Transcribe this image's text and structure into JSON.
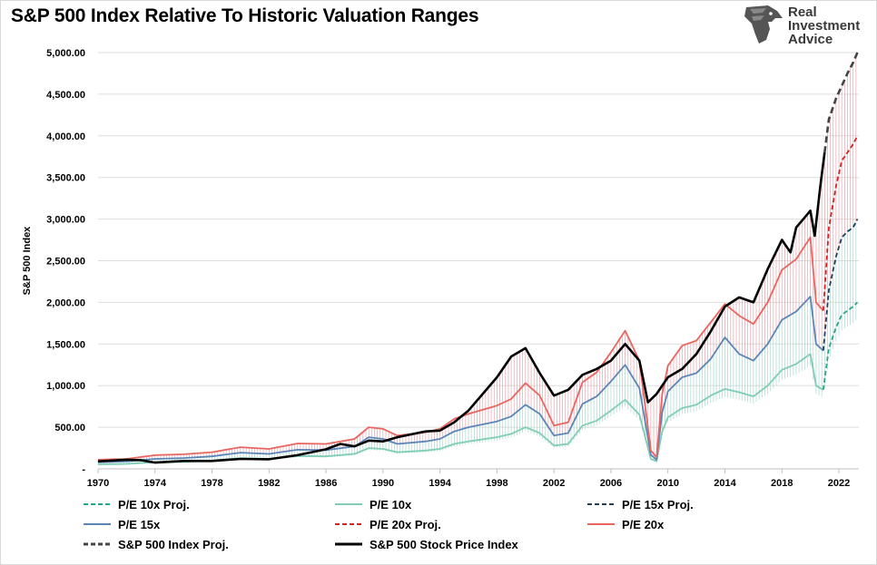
{
  "title": "S&P 500 Index Relative To Historic Valuation Ranges",
  "logo": {
    "line1": "Real",
    "line2": "Investment",
    "line3": "Advice",
    "icon": "eagle-head-icon"
  },
  "colors": {
    "pe10": "#7fcdb4",
    "pe10_proj": "#2aa58a",
    "pe15": "#5b85b8",
    "pe15_proj": "#1f3d5c",
    "pe20": "#e96660",
    "pe20_proj": "#d62020",
    "sp": "#000000",
    "sp_proj": "#444444",
    "band_lower": "#a8d8cb",
    "band_mid": "#aac0db",
    "band_upper": "#e3a6ad",
    "grid": "#dddddd"
  },
  "chart_data": {
    "type": "line",
    "ylabel": "S&P 500 Index",
    "xlabel": "",
    "xlim": [
      1970,
      2023.4
    ],
    "ylim": [
      0,
      5000
    ],
    "ytick_labels": [
      "-",
      "500.00",
      "1,000.00",
      "1,500.00",
      "2,000.00",
      "2,500.00",
      "3,000.00",
      "3,500.00",
      "4,000.00",
      "4,500.00",
      "5,000.00"
    ],
    "ytick_values": [
      0,
      500,
      1000,
      1500,
      2000,
      2500,
      3000,
      3500,
      4000,
      4500,
      5000
    ],
    "xtick_labels": [
      "1970",
      "1974",
      "1978",
      "1982",
      "1986",
      "1990",
      "1994",
      "1998",
      "2002",
      "2006",
      "2010",
      "2014",
      "2018",
      "2022"
    ],
    "xtick_values": [
      1970,
      1974,
      1978,
      1982,
      1986,
      1990,
      1994,
      1998,
      2002,
      2006,
      2010,
      2014,
      2018,
      2022
    ],
    "grid": true,
    "legend_position": "bottom",
    "series": [
      {
        "name": "P/E 10x",
        "key": "pe10",
        "style": "solid",
        "points": [
          [
            1970,
            55
          ],
          [
            1972,
            60
          ],
          [
            1974,
            80
          ],
          [
            1976,
            85
          ],
          [
            1978,
            100
          ],
          [
            1980,
            130
          ],
          [
            1982,
            120
          ],
          [
            1984,
            155
          ],
          [
            1986,
            150
          ],
          [
            1988,
            180
          ],
          [
            1989,
            250
          ],
          [
            1990,
            240
          ],
          [
            1991,
            200
          ],
          [
            1993,
            220
          ],
          [
            1994,
            240
          ],
          [
            1995,
            300
          ],
          [
            1996,
            330
          ],
          [
            1998,
            380
          ],
          [
            1999,
            420
          ],
          [
            2000,
            500
          ],
          [
            2001,
            430
          ],
          [
            2002,
            280
          ],
          [
            2003,
            300
          ],
          [
            2004,
            520
          ],
          [
            2005,
            580
          ],
          [
            2006,
            700
          ],
          [
            2007,
            830
          ],
          [
            2008,
            650
          ],
          [
            2008.8,
            120
          ],
          [
            2009.2,
            90
          ],
          [
            2009.6,
            450
          ],
          [
            2010,
            620
          ],
          [
            2011,
            730
          ],
          [
            2012,
            770
          ],
          [
            2013,
            880
          ],
          [
            2014,
            960
          ],
          [
            2015,
            920
          ],
          [
            2016,
            870
          ],
          [
            2017,
            1000
          ],
          [
            2018,
            1190
          ],
          [
            2019,
            1260
          ],
          [
            2020,
            1380
          ],
          [
            2020.4,
            1000
          ],
          [
            2020.9,
            950
          ]
        ]
      },
      {
        "name": "P/E 10x Proj.",
        "key": "pe10_proj",
        "style": "dashed",
        "points": [
          [
            2020.9,
            950
          ],
          [
            2021.3,
            1450
          ],
          [
            2021.8,
            1700
          ],
          [
            2022.2,
            1850
          ],
          [
            2022.6,
            1900
          ],
          [
            2023,
            1950
          ],
          [
            2023.3,
            2000
          ]
        ]
      },
      {
        "name": "P/E 15x",
        "key": "pe15",
        "style": "solid",
        "points": [
          [
            1970,
            80
          ],
          [
            1972,
            90
          ],
          [
            1974,
            120
          ],
          [
            1976,
            130
          ],
          [
            1978,
            150
          ],
          [
            1980,
            195
          ],
          [
            1982,
            180
          ],
          [
            1984,
            230
          ],
          [
            1986,
            225
          ],
          [
            1988,
            270
          ],
          [
            1989,
            380
          ],
          [
            1990,
            360
          ],
          [
            1991,
            300
          ],
          [
            1993,
            330
          ],
          [
            1994,
            360
          ],
          [
            1995,
            450
          ],
          [
            1996,
            500
          ],
          [
            1998,
            570
          ],
          [
            1999,
            630
          ],
          [
            2000,
            770
          ],
          [
            2001,
            660
          ],
          [
            2002,
            400
          ],
          [
            2003,
            430
          ],
          [
            2004,
            780
          ],
          [
            2005,
            870
          ],
          [
            2006,
            1050
          ],
          [
            2007,
            1250
          ],
          [
            2008,
            970
          ],
          [
            2008.8,
            170
          ],
          [
            2009.2,
            110
          ],
          [
            2009.6,
            680
          ],
          [
            2010,
            930
          ],
          [
            2011,
            1100
          ],
          [
            2012,
            1150
          ],
          [
            2013,
            1320
          ],
          [
            2014,
            1580
          ],
          [
            2015,
            1380
          ],
          [
            2016,
            1300
          ],
          [
            2017,
            1500
          ],
          [
            2018,
            1790
          ],
          [
            2019,
            1890
          ],
          [
            2020,
            2070
          ],
          [
            2020.4,
            1500
          ],
          [
            2020.9,
            1420
          ]
        ]
      },
      {
        "name": "P/E 15x Proj.",
        "key": "pe15_proj",
        "style": "dashed",
        "points": [
          [
            2020.9,
            1420
          ],
          [
            2021.3,
            2150
          ],
          [
            2021.8,
            2550
          ],
          [
            2022.2,
            2780
          ],
          [
            2022.6,
            2850
          ],
          [
            2023,
            2900
          ],
          [
            2023.3,
            3000
          ]
        ]
      },
      {
        "name": "P/E 20x",
        "key": "pe20",
        "style": "solid",
        "points": [
          [
            1970,
            110
          ],
          [
            1972,
            120
          ],
          [
            1974,
            165
          ],
          [
            1976,
            175
          ],
          [
            1978,
            200
          ],
          [
            1980,
            260
          ],
          [
            1982,
            240
          ],
          [
            1984,
            305
          ],
          [
            1986,
            300
          ],
          [
            1988,
            360
          ],
          [
            1989,
            500
          ],
          [
            1990,
            480
          ],
          [
            1991,
            400
          ],
          [
            1993,
            440
          ],
          [
            1994,
            480
          ],
          [
            1995,
            600
          ],
          [
            1996,
            660
          ],
          [
            1998,
            760
          ],
          [
            1999,
            840
          ],
          [
            2000,
            1030
          ],
          [
            2001,
            880
          ],
          [
            2002,
            520
          ],
          [
            2003,
            560
          ],
          [
            2004,
            1040
          ],
          [
            2005,
            1160
          ],
          [
            2006,
            1400
          ],
          [
            2007,
            1660
          ],
          [
            2008,
            1300
          ],
          [
            2008.8,
            220
          ],
          [
            2009.2,
            140
          ],
          [
            2009.6,
            900
          ],
          [
            2010,
            1240
          ],
          [
            2011,
            1480
          ],
          [
            2012,
            1540
          ],
          [
            2013,
            1760
          ],
          [
            2014,
            1980
          ],
          [
            2015,
            1840
          ],
          [
            2016,
            1740
          ],
          [
            2017,
            2000
          ],
          [
            2018,
            2390
          ],
          [
            2019,
            2520
          ],
          [
            2020,
            2780
          ],
          [
            2020.4,
            2000
          ],
          [
            2020.9,
            1900
          ]
        ]
      },
      {
        "name": "P/E 20x Proj.",
        "key": "pe20_proj",
        "style": "dashed",
        "points": [
          [
            2020.9,
            1900
          ],
          [
            2021.3,
            2900
          ],
          [
            2021.8,
            3400
          ],
          [
            2022.2,
            3700
          ],
          [
            2022.6,
            3800
          ],
          [
            2023,
            3900
          ],
          [
            2023.3,
            4000
          ]
        ]
      },
      {
        "name": "S&P 500 Stock Price Index",
        "key": "sp",
        "style": "solid",
        "points": [
          [
            1970,
            90
          ],
          [
            1972,
            110
          ],
          [
            1973,
            105
          ],
          [
            1974,
            75
          ],
          [
            1976,
            95
          ],
          [
            1978,
            95
          ],
          [
            1980,
            120
          ],
          [
            1982,
            115
          ],
          [
            1984,
            165
          ],
          [
            1986,
            235
          ],
          [
            1987,
            300
          ],
          [
            1988,
            270
          ],
          [
            1989,
            340
          ],
          [
            1990,
            330
          ],
          [
            1991,
            380
          ],
          [
            1992,
            415
          ],
          [
            1993,
            450
          ],
          [
            1994,
            460
          ],
          [
            1995,
            560
          ],
          [
            1996,
            700
          ],
          [
            1997,
            900
          ],
          [
            1998,
            1100
          ],
          [
            1999,
            1350
          ],
          [
            2000,
            1450
          ],
          [
            2001,
            1150
          ],
          [
            2002,
            880
          ],
          [
            2003,
            950
          ],
          [
            2004,
            1130
          ],
          [
            2005,
            1200
          ],
          [
            2006,
            1300
          ],
          [
            2007,
            1500
          ],
          [
            2008,
            1300
          ],
          [
            2008.6,
            800
          ],
          [
            2009.2,
            900
          ],
          [
            2010,
            1100
          ],
          [
            2011,
            1200
          ],
          [
            2012,
            1380
          ],
          [
            2013,
            1650
          ],
          [
            2014,
            1950
          ],
          [
            2015,
            2060
          ],
          [
            2016,
            2000
          ],
          [
            2017,
            2400
          ],
          [
            2018,
            2750
          ],
          [
            2018.6,
            2600
          ],
          [
            2019,
            2900
          ],
          [
            2020,
            3100
          ],
          [
            2020.3,
            2800
          ],
          [
            2020.7,
            3400
          ],
          [
            2021,
            3800
          ]
        ]
      },
      {
        "name": "S&P 500 Index Proj.",
        "key": "sp_proj",
        "style": "dashed",
        "points": [
          [
            2021,
            3800
          ],
          [
            2021.3,
            4200
          ],
          [
            2021.8,
            4450
          ],
          [
            2022.2,
            4600
          ],
          [
            2022.6,
            4750
          ],
          [
            2023,
            4880
          ],
          [
            2023.3,
            5000
          ]
        ]
      }
    ]
  },
  "legend": [
    {
      "label": "P/E 10x Proj.",
      "key": "pe10_proj",
      "style": "dashed"
    },
    {
      "label": "P/E 10x",
      "key": "pe10",
      "style": "solid"
    },
    {
      "label": "P/E 15x Proj.",
      "key": "pe15_proj",
      "style": "dashed"
    },
    {
      "label": "P/E 15x",
      "key": "pe15",
      "style": "solid"
    },
    {
      "label": "P/E 20x Proj.",
      "key": "pe20_proj",
      "style": "dashed"
    },
    {
      "label": "P/E 20x",
      "key": "pe20",
      "style": "solid"
    },
    {
      "label": "S&P 500 Index Proj.",
      "key": "sp_proj",
      "style": "dashed"
    },
    {
      "label": "S&P 500 Stock Price Index",
      "key": "sp",
      "style": "solid"
    }
  ]
}
